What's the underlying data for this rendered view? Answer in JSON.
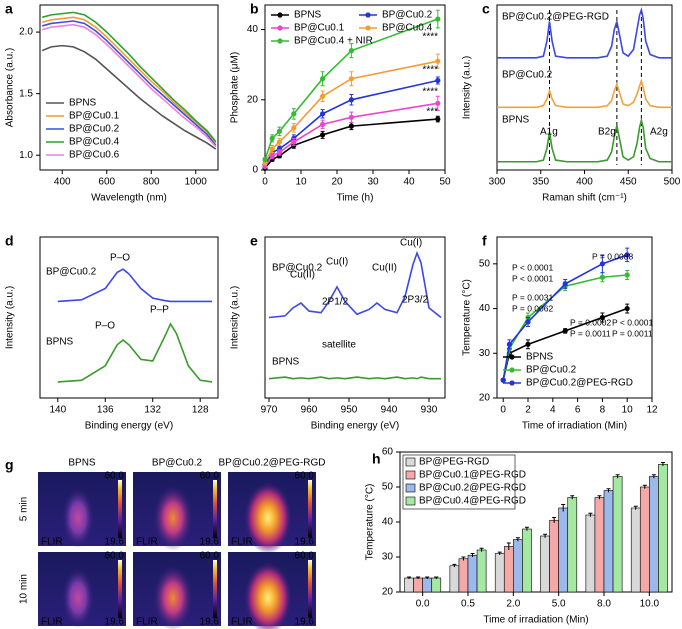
{
  "chart_data": [
    {
      "type": "line",
      "label": "a",
      "xlabel": "Wavelength (nm)",
      "ylabel": "Absorbance (a.u.)",
      "xlim": [
        300,
        1100
      ],
      "xticks": [
        400,
        600,
        800,
        1000
      ],
      "ylim": [
        0.88,
        2.22
      ],
      "yticks": [
        {
          "value": 1,
          "label": "1.0"
        },
        {
          "value": 1.5,
          "label": "1.5"
        },
        {
          "value": 2,
          "label": "2.0"
        }
      ],
      "legend": "lower left",
      "markers": false,
      "x": [
        310,
        350,
        400,
        450,
        500,
        550,
        600,
        650,
        700,
        750,
        800,
        850,
        900,
        950,
        1000,
        1050,
        1090
      ],
      "series": [
        {
          "name": "BPNS",
          "color": "#555555",
          "values": [
            1.85,
            1.88,
            1.89,
            1.88,
            1.84,
            1.78,
            1.7,
            1.62,
            1.54,
            1.46,
            1.39,
            1.32,
            1.26,
            1.2,
            1.15,
            1.1,
            1.05
          ]
        },
        {
          "name": "BP@Cu0.1",
          "color": "#f39c34",
          "values": [
            2.08,
            2.1,
            2.11,
            2.12,
            2.1,
            2.04,
            1.96,
            1.87,
            1.78,
            1.69,
            1.6,
            1.52,
            1.43,
            1.35,
            1.27,
            1.19,
            1.1
          ]
        },
        {
          "name": "BP@Cu0.2",
          "color": "#3a4fe0",
          "values": [
            2.05,
            2.07,
            2.08,
            2.09,
            2.07,
            2.01,
            1.93,
            1.84,
            1.75,
            1.66,
            1.57,
            1.49,
            1.41,
            1.33,
            1.25,
            1.17,
            1.08
          ]
        },
        {
          "name": "BP@Cu0.4",
          "color": "#2ca02c",
          "values": [
            2.12,
            2.14,
            2.15,
            2.16,
            2.14,
            2.08,
            2.0,
            1.91,
            1.82,
            1.72,
            1.63,
            1.54,
            1.45,
            1.37,
            1.28,
            1.2,
            1.11
          ]
        },
        {
          "name": "BP@Cu0.6",
          "color": "#f27ee0",
          "values": [
            2.02,
            2.04,
            2.05,
            2.06,
            2.04,
            1.98,
            1.9,
            1.81,
            1.72,
            1.63,
            1.54,
            1.46,
            1.38,
            1.3,
            1.23,
            1.15,
            1.07
          ]
        }
      ]
    },
    {
      "type": "line",
      "label": "b",
      "xlabel": "Time (h)",
      "ylabel": "Phosphate (μM)",
      "xlim": [
        0,
        50
      ],
      "xticks": [
        0,
        10,
        20,
        30,
        40,
        50
      ],
      "ylim": [
        0,
        47
      ],
      "yticks": [
        0,
        20,
        40
      ],
      "legend": "upper left",
      "legend_columns": 2,
      "markers": true,
      "x": [
        0,
        2,
        4,
        8,
        16,
        24,
        48
      ],
      "series": [
        {
          "name": "BPNS",
          "color": "#000000",
          "values": [
            0.5,
            3,
            4,
            7,
            10,
            12.5,
            14.5
          ],
          "errors": [
            0.3,
            0.5,
            0.5,
            0.8,
            1,
            1,
            0.8
          ]
        },
        {
          "name": "BP@Cu0.2",
          "color": "#2233dd",
          "values": [
            1.5,
            5,
            6,
            9,
            16,
            20,
            25.5
          ],
          "errors": [
            0.3,
            0.8,
            0.8,
            1,
            1.2,
            1.5,
            1
          ]
        },
        {
          "name": "BP@Cu0.1",
          "color": "#ee44cc",
          "values": [
            1,
            4,
            5,
            8,
            13,
            15,
            19
          ],
          "errors": [
            0.3,
            0.8,
            0.8,
            1,
            1.2,
            1.5,
            2
          ]
        },
        {
          "name": "BP@Cu0.4",
          "color": "#f39c34",
          "values": [
            2,
            6,
            8,
            12,
            21,
            26,
            31
          ],
          "errors": [
            0.4,
            1,
            1,
            1.2,
            1.5,
            2,
            2
          ]
        },
        {
          "name": "BP@Cu0.4 + NIR",
          "color": "#33bb33",
          "values": [
            3,
            9,
            11,
            16,
            26,
            34,
            43
          ],
          "errors": [
            0.5,
            1,
            1.2,
            1.5,
            2,
            2,
            2.5
          ]
        }
      ],
      "annotations": [
        {
          "text": "****",
          "color": "#33bb33"
        },
        {
          "text": "****",
          "color": "#f39c34"
        },
        {
          "text": "****",
          "color": "#2233dd"
        },
        {
          "text": "***",
          "color": "#ee44cc"
        }
      ]
    },
    {
      "type": "line",
      "label": "c",
      "xlabel": "Raman shift (cm⁻¹)",
      "ylabel": "Intensity (a.u.)",
      "xlim": [
        300,
        500
      ],
      "xticks": [
        300,
        350,
        400,
        450,
        500
      ],
      "ylim": [
        0,
        10
      ],
      "markers": false,
      "vlines": [
        360,
        437,
        465
      ],
      "x": [
        300,
        345,
        353,
        357,
        360,
        363,
        367,
        380,
        415,
        426,
        431,
        434,
        437,
        440,
        444,
        450,
        456,
        460,
        463,
        465,
        467,
        470,
        475,
        485,
        500
      ],
      "series": [
        {
          "color": "#3b48e6",
          "values": [
            6.8,
            6.8,
            6.9,
            7.8,
            9.0,
            7.8,
            6.9,
            6.8,
            6.8,
            6.9,
            7.5,
            8.5,
            9.0,
            8.2,
            7.1,
            6.9,
            7.3,
            8.5,
            9.4,
            9.7,
            9.2,
            7.8,
            7.0,
            6.8,
            6.8
          ]
        },
        {
          "color": "#f2a23c",
          "values": [
            3.8,
            3.8,
            3.9,
            4.3,
            4.8,
            4.3,
            3.9,
            3.8,
            3.8,
            3.9,
            4.2,
            4.8,
            5.2,
            4.7,
            4.0,
            3.9,
            4.1,
            4.6,
            5.1,
            5.4,
            5.0,
            4.3,
            3.9,
            3.8,
            3.8
          ]
        },
        {
          "color": "#3a9a2c",
          "values": [
            0.5,
            0.5,
            0.6,
            1.3,
            2.3,
            1.3,
            0.6,
            0.5,
            0.5,
            0.6,
            1.1,
            2.0,
            2.7,
            1.9,
            0.8,
            0.6,
            0.8,
            1.6,
            2.6,
            3.0,
            2.6,
            1.3,
            0.7,
            0.5,
            0.5
          ]
        }
      ],
      "annotations": [
        {
          "text": "BP@Cu0.2@PEG-RGD",
          "color": "#000000"
        },
        {
          "text": "BP@Cu0.2",
          "color": "#000000"
        },
        {
          "text": "BPNS",
          "color": "#000000"
        },
        {
          "text": "A1g",
          "color": "#000000"
        },
        {
          "text": "B2g",
          "color": "#000000"
        },
        {
          "text": "A2g",
          "color": "#000000"
        }
      ]
    },
    {
      "type": "line",
      "label": "d",
      "xlabel": "Binding energy (eV)",
      "ylabel": "Intensity (a.u.)",
      "xlim": [
        141.5,
        126.5
      ],
      "xticks": [
        140,
        136,
        132,
        128
      ],
      "ylim": [
        0,
        10
      ],
      "markers": false,
      "x": [
        140,
        138,
        136,
        135,
        134.5,
        134,
        133,
        132,
        131,
        130.5,
        130,
        129,
        128,
        127
      ],
      "series": [
        {
          "color": "#3b48e6",
          "values": [
            6,
            6.1,
            6.8,
            7.8,
            8.0,
            7.7,
            6.8,
            6.2,
            6.05,
            6,
            6,
            6,
            6,
            6
          ]
        },
        {
          "color": "#3a9a2c",
          "values": [
            1,
            1.1,
            2.0,
            3.3,
            3.6,
            3.3,
            2.4,
            2.3,
            3.8,
            4.6,
            4.0,
            2.0,
            1.1,
            1.0
          ]
        }
      ],
      "annotations": [
        {
          "text": "BP@Cu0.2",
          "color": "#000000"
        },
        {
          "text": "P–O",
          "color": "#000000"
        },
        {
          "text": "BPNS",
          "color": "#000000"
        },
        {
          "text": "P–O",
          "color": "#000000"
        },
        {
          "text": "P–P",
          "color": "#000000"
        }
      ]
    },
    {
      "type": "line",
      "label": "e",
      "xlabel": "Binding energy (eV)",
      "ylabel": "Intensity (a.u.)",
      "xlim": [
        971,
        926
      ],
      "xticks": [
        970,
        960,
        950,
        940,
        930
      ],
      "ylim": [
        0,
        10
      ],
      "markers": false,
      "x": [
        970,
        966,
        964,
        962,
        960,
        957,
        955,
        953,
        951,
        948,
        945,
        943,
        941,
        938,
        936,
        934,
        933,
        932,
        930,
        927
      ],
      "series": [
        {
          "color": "#3b48e6",
          "values": [
            5,
            5.1,
            5.6,
            5.9,
            5.4,
            5.3,
            6.0,
            6.9,
            6.0,
            5.2,
            5.5,
            5.9,
            5.5,
            5.3,
            6.3,
            8.3,
            9.0,
            8.4,
            5.6,
            5.0
          ]
        },
        {
          "color": "#3a9a2c",
          "values": [
            1.2,
            1.3,
            1.2,
            1.25,
            1.2,
            1.3,
            1.2,
            1.25,
            1.2,
            1.3,
            1.2,
            1.25,
            1.2,
            1.3,
            1.2,
            1.25,
            1.2,
            1.3,
            1.2,
            1.2
          ]
        }
      ],
      "annotations": [
        {
          "text": "BP@Cu0.2",
          "color": "#000000"
        },
        {
          "text": "Cu(II)",
          "color": "#d9731a"
        },
        {
          "text": "Cu(I)",
          "color": "#d9731a"
        },
        {
          "text": "Cu(II)",
          "color": "#d9731a"
        },
        {
          "text": "Cu(I)",
          "color": "#d9731a"
        },
        {
          "text": "2P1/2",
          "color": "#000000"
        },
        {
          "text": "2P3/2",
          "color": "#000000"
        },
        {
          "text": "satellite",
          "color": "#000000"
        },
        {
          "text": "BPNS",
          "color": "#000000"
        }
      ]
    },
    {
      "type": "line",
      "label": "f",
      "xlabel": "Time of irradiation (Min)",
      "ylabel": "Temperature (°C)",
      "xlim": [
        -0.5,
        12
      ],
      "xticks": [
        0,
        2,
        4,
        6,
        8,
        10,
        12
      ],
      "ylim": [
        20,
        56
      ],
      "yticks": [
        20,
        30,
        40,
        50
      ],
      "legend": "lower left",
      "markers": true,
      "x": [
        0,
        0.5,
        2,
        5,
        8,
        10
      ],
      "series": [
        {
          "name": "BPNS",
          "color": "#000000",
          "values": [
            24,
            30,
            32,
            35,
            38,
            40
          ],
          "errors": [
            0.3,
            1,
            1,
            0.5,
            1,
            1
          ]
        },
        {
          "name": "BP@Cu0.2",
          "color": "#33bb33",
          "values": [
            24,
            31,
            38,
            45,
            47,
            47.5
          ],
          "errors": [
            0.3,
            1,
            1,
            1,
            1,
            1
          ]
        },
        {
          "name": "BP@Cu0.2@PEG-RGD",
          "color": "#2233dd",
          "values": [
            24,
            32,
            37,
            45.5,
            50,
            52
          ],
          "errors": [
            0.3,
            1,
            1,
            1,
            2,
            1.5
          ]
        }
      ],
      "annotations": [
        {
          "text": "P = 0.0088",
          "color": "#000000"
        },
        {
          "text": "P < 0.0001",
          "color": "#33aa33"
        },
        {
          "text": "P < 0.0001",
          "color": "#2233dd"
        },
        {
          "text": "P = 0.0031",
          "color": "#33aa33"
        },
        {
          "text": "P = 0.0062",
          "color": "#2233dd"
        },
        {
          "text": "P = 0.0002",
          "color": "#2233dd"
        },
        {
          "text": "P < 0.0001",
          "color": "#2233dd"
        },
        {
          "text": "P = 0.0011",
          "color": "#33aa33"
        },
        {
          "text": "P = 0.0011",
          "color": "#33aa33"
        }
      ]
    },
    {
      "type": "bar",
      "label": "h",
      "xlabel": "Time of irradiation (Min)",
      "ylabel": "Temperature (°C)",
      "categories": [
        "0.0",
        "0.5",
        "2.0",
        "5.0",
        "8.0",
        "10.0"
      ],
      "ylim": [
        20,
        60
      ],
      "yticks": [
        20,
        30,
        40,
        50,
        60
      ],
      "legend": "upper left",
      "series": [
        {
          "name": "BP@PEG-RGD",
          "color": "#d9d9d9",
          "values": [
            24,
            27.5,
            31,
            36,
            42,
            44
          ],
          "errors": [
            0.3,
            0.4,
            0.4,
            0.5,
            0.5,
            0.5
          ]
        },
        {
          "name": "BP@Cu0.1@PEG-RGD",
          "color": "#f4a9a8",
          "values": [
            24,
            29.5,
            33,
            40.5,
            47,
            50
          ],
          "errors": [
            0.3,
            0.5,
            1,
            0.8,
            0.5,
            0.5
          ]
        },
        {
          "name": "BP@Cu0.2@PEG-RGD",
          "color": "#9db9ec",
          "values": [
            24,
            30.5,
            35,
            44,
            49,
            53
          ],
          "errors": [
            0.3,
            0.5,
            0.5,
            1,
            0.5,
            0.5
          ]
        },
        {
          "name": "BP@Cu0.4@PEG-RGD",
          "color": "#a5e8a1",
          "values": [
            24,
            32,
            38,
            47,
            53,
            56.5
          ],
          "errors": [
            0.3,
            0.5,
            0.5,
            0.5,
            0.5,
            0.5
          ]
        }
      ]
    }
  ],
  "thermal_images": {
    "label": "g",
    "columns": [
      "BPNS",
      "BP@Cu0.2",
      "BP@Cu0.2@PEG-RGD"
    ],
    "rows": [
      "5 min",
      "10 min"
    ],
    "scale_max": "60.0",
    "scale_min": "19.6",
    "brand": "FLIR"
  }
}
